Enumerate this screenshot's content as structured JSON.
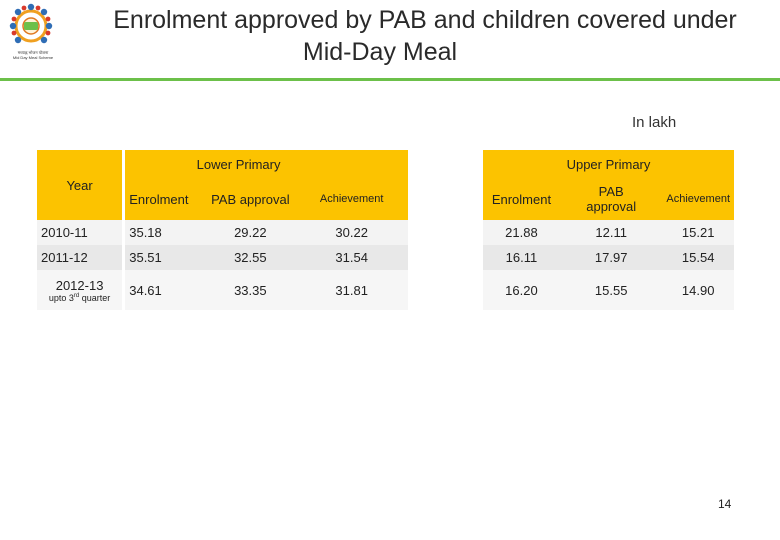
{
  "header": {
    "title_line1": "Enrolment approved by PAB and children covered under",
    "title_line2": "Mid-Day Meal",
    "logo_caption_line1": "मध्याह्न भोजन योजना",
    "logo_caption_line2": "Mid Day Meal Scheme"
  },
  "unit_label": "In lakh",
  "table": {
    "year_header": "Year",
    "group_lower": "Lower Primary",
    "group_upper": "Upper Primary",
    "sub_headers": {
      "lower_enrolment": "Enrolment",
      "lower_pab": "PAB approval",
      "lower_achievement": "Achievement",
      "upper_enrolment": "Enrolment",
      "upper_pab_line1": "PAB",
      "upper_pab_line2": "approval",
      "upper_achievement": "Achievement"
    },
    "rows": [
      {
        "year": "2010-11",
        "year_note": "",
        "values": [
          "35.18",
          "29.22",
          "30.22",
          "21.88",
          "12.11",
          "15.21"
        ]
      },
      {
        "year": "2011-12",
        "year_note": "",
        "values": [
          "35.51",
          "32.55",
          "31.54",
          "16.11",
          "17.97",
          "15.54"
        ]
      },
      {
        "year": "2012-13",
        "year_note_pre": "upto 3",
        "year_note_sup": "rd",
        "year_note_post": " quarter",
        "values": [
          "34.61",
          "33.35",
          "31.81",
          "16.20",
          "15.55",
          "14.90"
        ]
      }
    ]
  },
  "page_number": "14",
  "colors": {
    "header_fill": "#fcc300",
    "accent_green": "#6cc04a"
  }
}
